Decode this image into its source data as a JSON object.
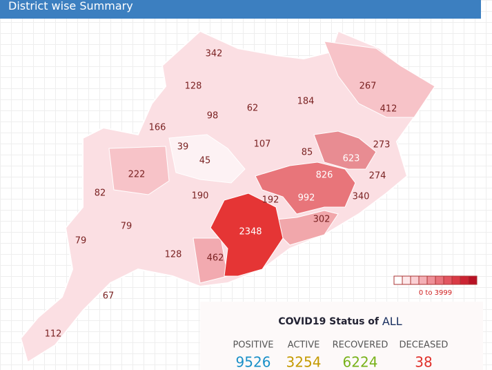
{
  "header": {
    "title": "District wise Summary"
  },
  "districts": [
    342,
    128,
    98,
    62,
    184,
    267,
    412,
    166,
    39,
    45,
    107,
    85,
    623,
    273,
    222,
    826,
    274,
    82,
    190,
    192,
    992,
    340,
    79,
    302,
    2348,
    79,
    128,
    462,
    67,
    112
  ],
  "legend": {
    "label": "0 to 3999"
  },
  "status": {
    "title": "COVID19 Status of",
    "scope": "ALL",
    "items": [
      {
        "label": "POSITIVE",
        "value": 9526,
        "color": "#1a90c8"
      },
      {
        "label": "ACTIVE",
        "value": 3254,
        "color": "#c49a00"
      },
      {
        "label": "RECOVERED",
        "value": 6224,
        "color": "#78b21a"
      },
      {
        "label": "DECEASED",
        "value": 38,
        "color": "#e0302a"
      }
    ]
  }
}
